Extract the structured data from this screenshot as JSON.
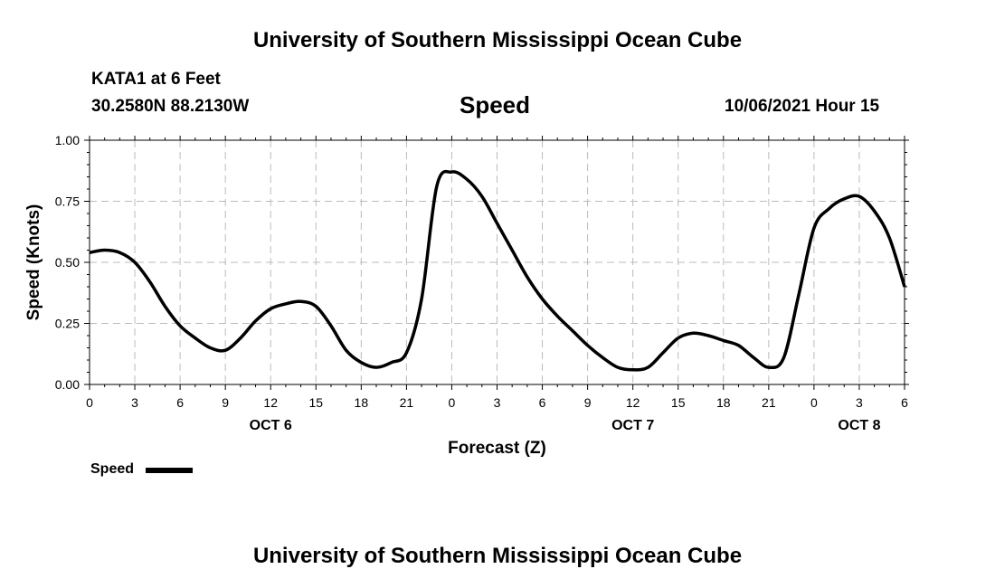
{
  "header": {
    "title": "University of Southern Mississippi Ocean Cube",
    "station": "KATA1 at 6 Feet",
    "coords": "30.2580N  88.2130W",
    "chart_name": "Speed",
    "timestamp": "10/06/2021 Hour 15"
  },
  "footer": {
    "title": "University of Southern Mississippi Ocean Cube"
  },
  "legend": {
    "label": "Speed"
  },
  "chart_data": {
    "type": "line",
    "title": "Speed",
    "xlabel": "Forecast (Z)",
    "ylabel": "Speed (Knots)",
    "ylim": [
      0,
      1.0
    ],
    "yticks": [
      "0.00",
      "0.25",
      "0.50",
      "0.75",
      "1.00"
    ],
    "xlim": [
      0,
      54
    ],
    "xtick_labels": [
      "0",
      "3",
      "6",
      "9",
      "12",
      "15",
      "18",
      "21",
      "0",
      "3",
      "6",
      "9",
      "12",
      "15",
      "18",
      "21",
      "0",
      "3",
      "6"
    ],
    "day_labels": [
      {
        "label": "OCT 6",
        "x": 12
      },
      {
        "label": "OCT 7",
        "x": 36
      },
      {
        "label": "OCT 8",
        "x": 51
      }
    ],
    "grid": true,
    "series": [
      {
        "name": "Speed",
        "color": "#000000",
        "x": [
          0,
          1,
          2,
          3,
          4,
          5,
          6,
          7,
          8,
          9,
          10,
          11,
          12,
          13,
          14,
          15,
          16,
          17,
          18,
          19,
          20,
          21,
          22,
          23,
          24,
          25,
          26,
          27,
          28,
          29,
          30,
          31,
          32,
          33,
          34,
          35,
          36,
          37,
          38,
          39,
          40,
          41,
          42,
          43,
          44,
          45,
          46,
          47,
          48,
          49,
          50,
          51,
          52,
          53,
          54
        ],
        "values": [
          0.54,
          0.55,
          0.54,
          0.5,
          0.42,
          0.32,
          0.24,
          0.19,
          0.15,
          0.14,
          0.19,
          0.26,
          0.31,
          0.33,
          0.34,
          0.32,
          0.24,
          0.14,
          0.09,
          0.07,
          0.09,
          0.13,
          0.35,
          0.81,
          0.87,
          0.84,
          0.77,
          0.66,
          0.55,
          0.44,
          0.35,
          0.28,
          0.22,
          0.16,
          0.11,
          0.07,
          0.06,
          0.07,
          0.13,
          0.19,
          0.21,
          0.2,
          0.18,
          0.16,
          0.11,
          0.07,
          0.11,
          0.37,
          0.64,
          0.72,
          0.76,
          0.77,
          0.71,
          0.6,
          0.4
        ]
      }
    ]
  }
}
